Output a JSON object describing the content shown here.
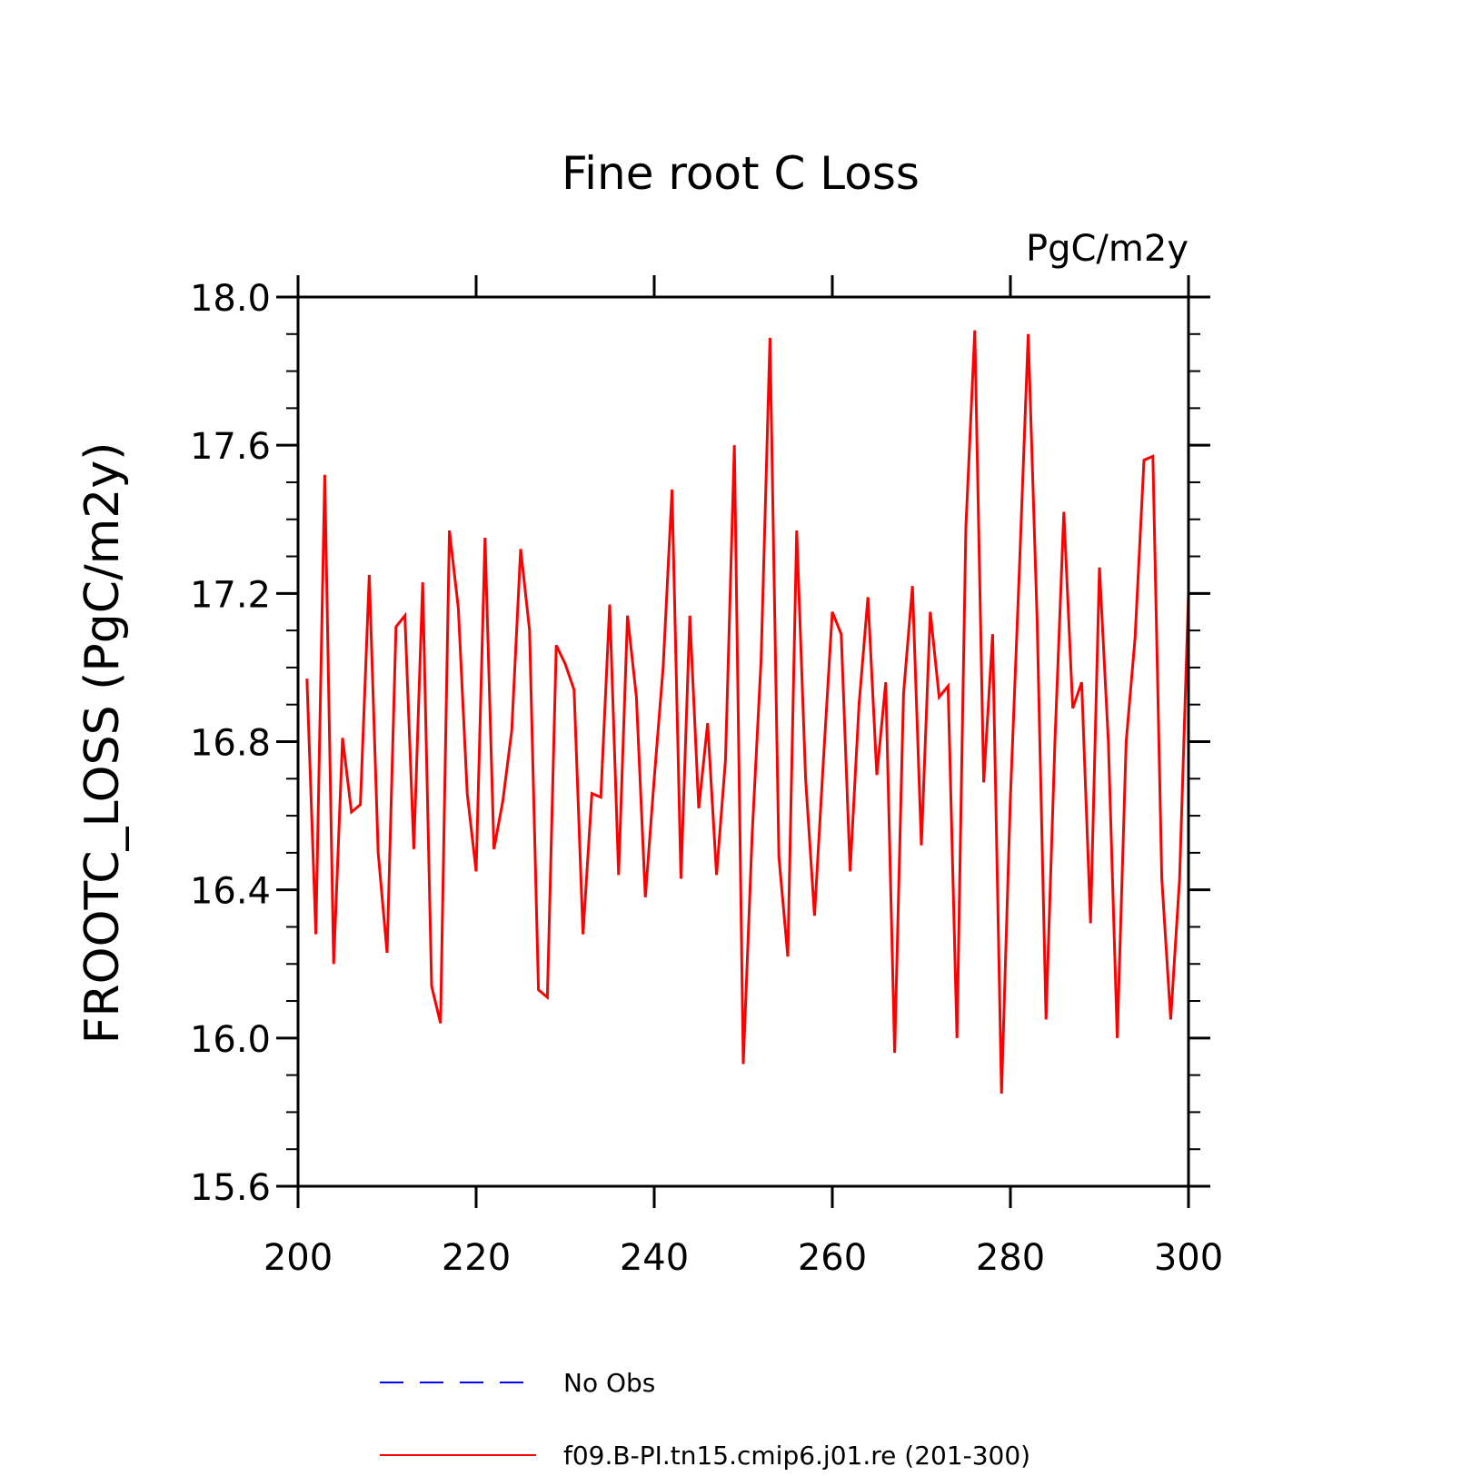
{
  "chart_data": {
    "type": "line",
    "title": "Fine root C Loss",
    "units": "PgC/m2y",
    "xlabel": "",
    "ylabel": "FROOTC_LOSS  (PgC/m2y)",
    "xlim": [
      200,
      300
    ],
    "ylim": [
      15.6,
      18.0
    ],
    "x_ticks": [
      "200",
      "220",
      "240",
      "260",
      "280",
      "300"
    ],
    "y_ticks": [
      "15.6",
      "16.0",
      "16.4",
      "16.8",
      "17.2",
      "17.6",
      "18.0"
    ],
    "grid": false,
    "legend_position": "bottom",
    "legend": [
      {
        "label": "No Obs",
        "color": "#0000ff",
        "style": "dashed"
      },
      {
        "label": "f09.B-PI.tn15.cmip6.j01.re (201-300)",
        "color": "#ff0000",
        "style": "solid"
      }
    ],
    "series": [
      {
        "name": "f09.B-PI.tn15.cmip6.j01.re (201-300)",
        "color": "#ff0000",
        "x": [
          201,
          202,
          203,
          204,
          205,
          206,
          207,
          208,
          209,
          210,
          211,
          212,
          213,
          214,
          215,
          216,
          217,
          218,
          219,
          220,
          221,
          222,
          223,
          224,
          225,
          226,
          227,
          228,
          229,
          230,
          231,
          232,
          233,
          234,
          235,
          236,
          237,
          238,
          239,
          240,
          241,
          242,
          243,
          244,
          245,
          246,
          247,
          248,
          249,
          250,
          251,
          252,
          253,
          254,
          255,
          256,
          257,
          258,
          259,
          260,
          261,
          262,
          263,
          264,
          265,
          266,
          267,
          268,
          269,
          270,
          271,
          272,
          273,
          274,
          275,
          276,
          277,
          278,
          279,
          280,
          281,
          282,
          283,
          284,
          285,
          286,
          287,
          288,
          289,
          290,
          291,
          292,
          293,
          294,
          295,
          296,
          297,
          298,
          299,
          300
        ],
        "y": [
          16.97,
          16.28,
          17.52,
          16.2,
          16.81,
          16.61,
          16.63,
          17.25,
          16.5,
          16.23,
          17.11,
          17.14,
          16.51,
          17.23,
          16.14,
          16.04,
          17.37,
          17.16,
          16.66,
          16.45,
          17.35,
          16.51,
          16.64,
          16.83,
          17.32,
          17.1,
          16.13,
          16.11,
          17.06,
          17.01,
          16.94,
          16.28,
          16.66,
          16.65,
          17.17,
          16.44,
          17.14,
          16.92,
          16.38,
          16.7,
          17.0,
          17.48,
          16.43,
          17.14,
          16.62,
          16.85,
          16.44,
          16.75,
          17.6,
          15.93,
          16.55,
          17.02,
          17.89,
          16.49,
          16.22,
          17.37,
          16.7,
          16.33,
          16.75,
          17.15,
          17.09,
          16.45,
          16.9,
          17.19,
          16.71,
          16.96,
          15.96,
          16.93,
          17.22,
          16.52,
          17.15,
          16.92,
          16.95,
          16.0,
          17.38,
          17.91,
          16.69,
          17.09,
          15.85,
          16.65,
          17.26,
          17.9,
          17.13,
          16.05,
          16.8,
          17.42,
          16.89,
          16.96,
          16.31,
          17.27,
          16.8,
          16.0,
          16.8,
          17.08,
          17.56,
          17.57,
          16.43,
          16.05,
          16.43,
          17.2
        ]
      }
    ]
  }
}
